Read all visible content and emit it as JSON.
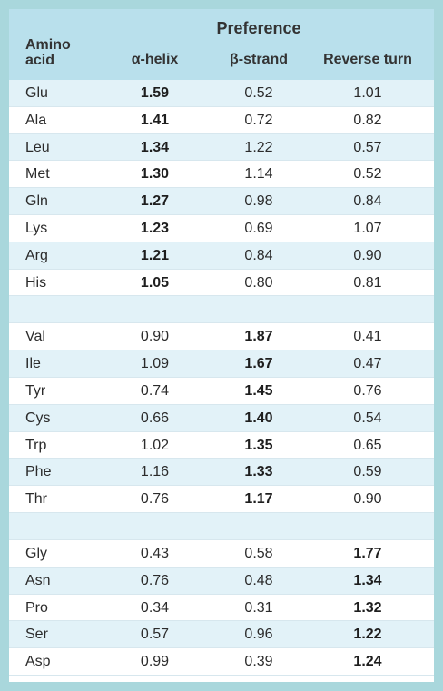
{
  "header": {
    "group_title": "Preference",
    "col_amino_line1": "Amino",
    "col_amino_line2": "acid",
    "col_alpha": "α-helix",
    "col_beta": "β-strand",
    "col_turn": "Reverse turn"
  },
  "groups": [
    {
      "rows": [
        {
          "aa": "Glu",
          "alpha": "1.59",
          "beta": "0.52",
          "turn": "1.01"
        },
        {
          "aa": "Ala",
          "alpha": "1.41",
          "beta": "0.72",
          "turn": "0.82"
        },
        {
          "aa": "Leu",
          "alpha": "1.34",
          "beta": "1.22",
          "turn": "0.57"
        },
        {
          "aa": "Met",
          "alpha": "1.30",
          "beta": "1.14",
          "turn": "0.52"
        },
        {
          "aa": "Gln",
          "alpha": "1.27",
          "beta": "0.98",
          "turn": "0.84"
        },
        {
          "aa": "Lys",
          "alpha": "1.23",
          "beta": "0.69",
          "turn": "1.07"
        },
        {
          "aa": "Arg",
          "alpha": "1.21",
          "beta": "0.84",
          "turn": "0.90"
        },
        {
          "aa": "His",
          "alpha": "1.05",
          "beta": "0.80",
          "turn": "0.81"
        }
      ]
    },
    {
      "rows": [
        {
          "aa": "Val",
          "alpha": "0.90",
          "beta": "1.87",
          "turn": "0.41"
        },
        {
          "aa": "Ile",
          "alpha": "1.09",
          "beta": "1.67",
          "turn": "0.47"
        },
        {
          "aa": "Tyr",
          "alpha": "0.74",
          "beta": "1.45",
          "turn": "0.76"
        },
        {
          "aa": "Cys",
          "alpha": "0.66",
          "beta": "1.40",
          "turn": "0.54"
        },
        {
          "aa": "Trp",
          "alpha": "1.02",
          "beta": "1.35",
          "turn": "0.65"
        },
        {
          "aa": "Phe",
          "alpha": "1.16",
          "beta": "1.33",
          "turn": "0.59"
        },
        {
          "aa": "Thr",
          "alpha": "0.76",
          "beta": "1.17",
          "turn": "0.90"
        }
      ]
    },
    {
      "rows": [
        {
          "aa": "Gly",
          "alpha": "0.43",
          "beta": "0.58",
          "turn": "1.77"
        },
        {
          "aa": "Asn",
          "alpha": "0.76",
          "beta": "0.48",
          "turn": "1.34"
        },
        {
          "aa": "Pro",
          "alpha": "0.34",
          "beta": "0.31",
          "turn": "1.32"
        },
        {
          "aa": "Ser",
          "alpha": "0.57",
          "beta": "0.96",
          "turn": "1.22"
        },
        {
          "aa": "Asp",
          "alpha": "0.99",
          "beta": "0.39",
          "turn": "1.24"
        }
      ]
    }
  ]
}
